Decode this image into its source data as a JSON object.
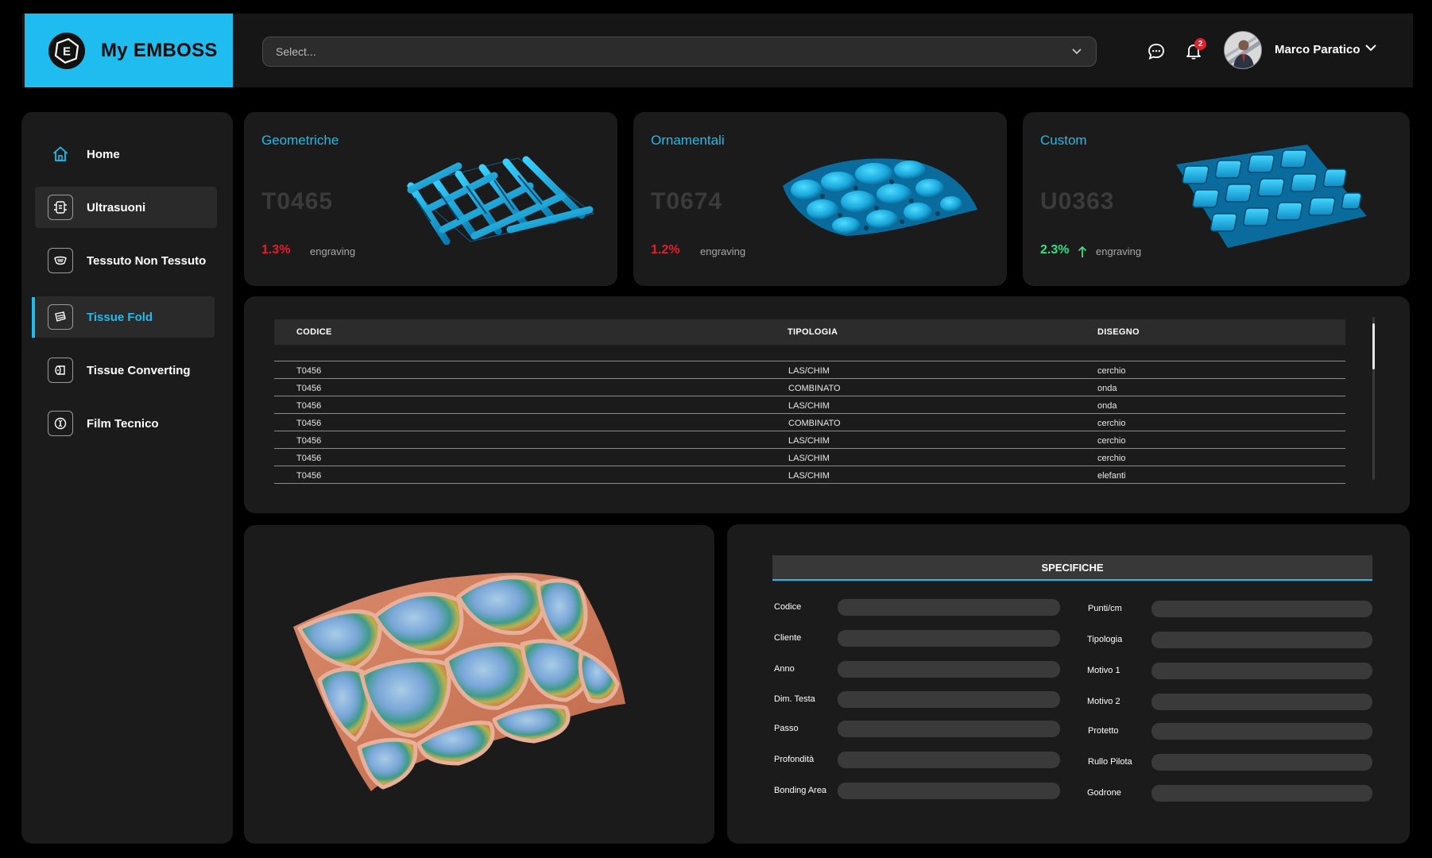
{
  "app": {
    "brand": "My EMBOSS",
    "brand_logo_letter": "E"
  },
  "header": {
    "select_placeholder": "Select...",
    "notification_count": "2",
    "user_name": "Marco Paratico",
    "icons": [
      "chat-icon",
      "bell-icon",
      "chevron-down-icon"
    ]
  },
  "sidebar": {
    "items": [
      {
        "label": "Home",
        "icon": "home-icon"
      },
      {
        "label": "Ultrasuoni",
        "icon": "ultrasound-icon"
      },
      {
        "label": "Tessuto Non Tessuto",
        "icon": "nonwoven-icon"
      },
      {
        "label": "Tissue Fold",
        "icon": "tissue-fold-icon",
        "active": true
      },
      {
        "label": "Tissue Converting",
        "icon": "tissue-roll-icon"
      },
      {
        "label": "Film Tecnico",
        "icon": "film-icon"
      }
    ]
  },
  "cards": [
    {
      "title": "Geometriche",
      "code": "T0465",
      "pct": "1.3%",
      "sub": "engraving",
      "color": "#e0202f"
    },
    {
      "title": "Ornamentali",
      "code": "T0674",
      "pct": "1.2%",
      "sub": "engraving",
      "color": "#e0202f"
    },
    {
      "title": "Custom",
      "code": "U0363",
      "pct": "2.3%",
      "sub": "engraving",
      "color": "#3ddc84"
    }
  ],
  "table": {
    "headers": [
      "CODICE",
      "TIPOLOGIA",
      "DISEGNO"
    ],
    "rows": [
      [
        "T0456",
        "LAS/CHIM",
        "cerchio"
      ],
      [
        "T0456",
        "COMBINATO",
        "onda"
      ],
      [
        "T0456",
        "LAS/CHIM",
        "onda"
      ],
      [
        "T0456",
        "COMBINATO",
        "cerchio"
      ],
      [
        "T0456",
        "LAS/CHIM",
        "cerchio"
      ],
      [
        "T0456",
        "LAS/CHIM",
        "cerchio"
      ],
      [
        "T0456",
        "LAS/CHIM",
        "elefanti"
      ]
    ]
  },
  "specs": {
    "title": "SPECIFICHE",
    "left": [
      "Codice",
      "Cliente",
      "Anno",
      "Dim. Testa",
      "Passo",
      "Profondità",
      "Bonding Area"
    ],
    "right": [
      "Punti/cm",
      "Tipologia",
      "Motivo 1",
      "Motivo 2",
      "Protetto",
      "Rullo Pilota",
      "Godrone"
    ]
  },
  "colors": {
    "accent": "#1ebcef",
    "negative": "#e0202f",
    "positive": "#3ddc84",
    "panel": "#1b1b1b"
  }
}
